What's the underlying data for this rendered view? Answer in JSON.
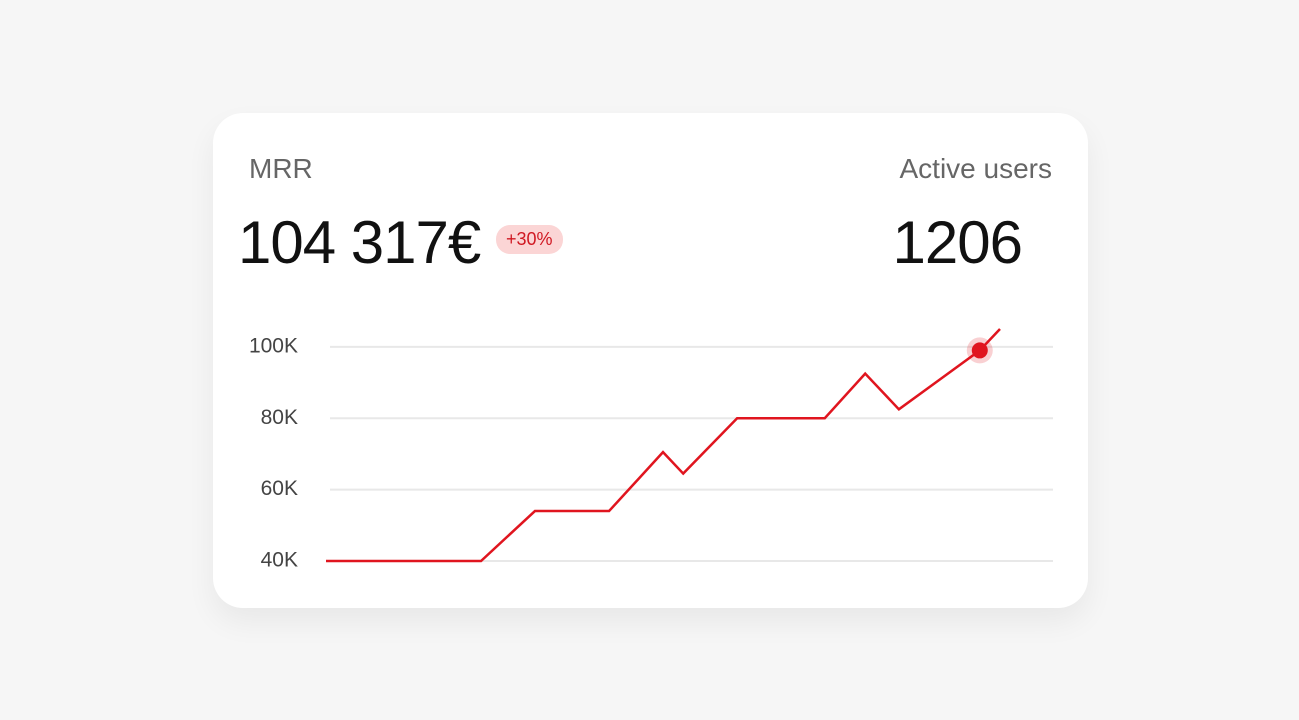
{
  "card": {
    "mrr_label": "MRR",
    "mrr_value": "104 317€",
    "growth": "+30%",
    "users_label": "Active users",
    "users_value": "1206"
  },
  "chart_data": {
    "type": "line",
    "x": [
      0,
      23,
      31,
      42,
      50,
      53,
      61,
      74,
      80,
      85,
      97,
      100
    ],
    "xlim": [
      0,
      100
    ],
    "series": [
      {
        "color": "#e0151f",
        "values": [
          40000,
          40000,
          54000,
          54000,
          70500,
          64500,
          80000,
          80000,
          92500,
          82500,
          99000,
          105000
        ]
      }
    ],
    "highlight": 10,
    "ylim": [
      40000,
      105000
    ],
    "yticks": [
      {
        "value": 40000,
        "label": "40K"
      },
      {
        "value": 60000,
        "label": "60K"
      },
      {
        "value": 80000,
        "label": "80K"
      },
      {
        "value": 100000,
        "label": "100K"
      }
    ],
    "grid": true
  }
}
